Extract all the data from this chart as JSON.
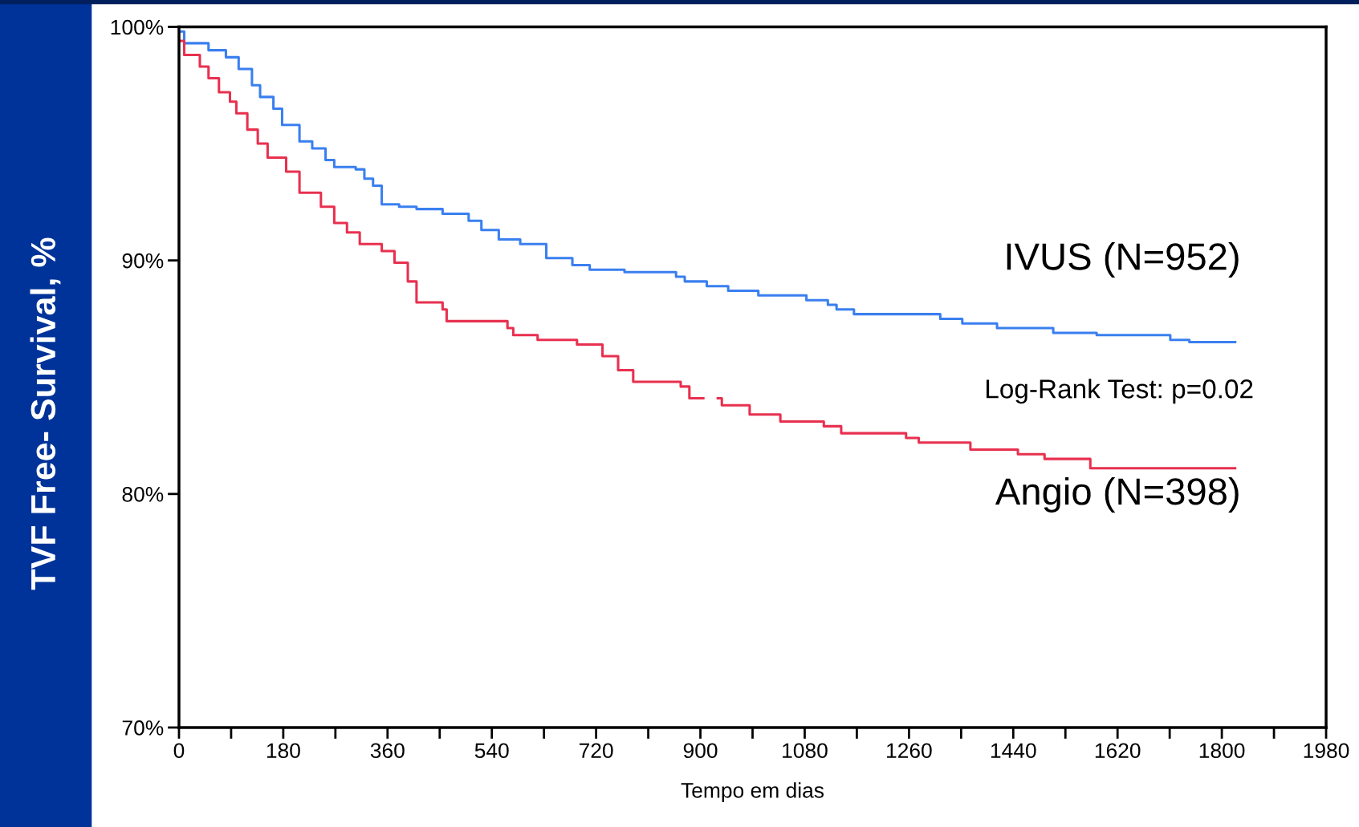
{
  "chart_data": {
    "type": "step",
    "xlabel": "Tempo em dias",
    "ylabel": "TVF Free- Survival, %",
    "annotations": [
      "Log-Rank Test: p=0.02"
    ],
    "xlim": [
      0,
      1980
    ],
    "ylim": [
      70,
      100
    ],
    "xticks": [
      0,
      {
        "value": 90,
        "label": null
      },
      180,
      {
        "value": 270,
        "label": null
      },
      360,
      {
        "value": 450,
        "label": null
      },
      540,
      {
        "value": 630,
        "label": null
      },
      720,
      {
        "value": 810,
        "label": null
      },
      900,
      {
        "value": 990,
        "label": null
      },
      1080,
      {
        "value": 1170,
        "label": null
      },
      1260,
      {
        "value": 1350,
        "label": null
      },
      1440,
      {
        "value": 1530,
        "label": null
      },
      1620,
      {
        "value": 1710,
        "label": null
      },
      1800,
      {
        "value": 1890,
        "label": null
      },
      1980
    ],
    "yticks": [
      {
        "value": 70,
        "label": "70%"
      },
      {
        "value": 80,
        "label": "80%"
      },
      {
        "value": 90,
        "label": "90%"
      },
      {
        "value": 100,
        "label": "100%"
      }
    ],
    "grid": false,
    "legend": false,
    "series": [
      {
        "name": "IVUS (N=952)",
        "color": "#3a7ff0",
        "x": [
          0,
          9,
          51,
          81,
          103,
          126,
          140,
          163,
          178,
          208,
          230,
          253,
          268,
          305,
          320,
          335,
          350,
          380,
          410,
          455,
          500,
          522,
          552,
          589,
          634,
          679,
          709,
          769,
          858,
          873,
          911,
          948,
          1000,
          1083,
          1120,
          1135,
          1165,
          1314,
          1352,
          1412,
          1509,
          1584,
          1711,
          1744,
          1823
        ],
        "values": [
          99.8,
          99.3,
          99.0,
          98.7,
          98.2,
          97.5,
          97.0,
          96.5,
          95.8,
          95.1,
          94.8,
          94.3,
          94.0,
          93.9,
          93.5,
          93.2,
          92.4,
          92.3,
          92.2,
          92.0,
          91.7,
          91.3,
          90.9,
          90.7,
          90.1,
          89.8,
          89.6,
          89.5,
          89.3,
          89.1,
          88.9,
          88.7,
          88.5,
          88.3,
          88.1,
          87.9,
          87.7,
          87.5,
          87.3,
          87.1,
          86.9,
          86.8,
          86.6,
          86.5,
          86.5
        ]
      },
      {
        "name": "Angio (N=398)",
        "color": "#e8304f",
        "x": [
          0,
          9,
          36,
          51,
          69,
          88,
          99,
          118,
          136,
          153,
          185,
          208,
          245,
          268,
          290,
          312,
          350,
          372,
          395,
          410,
          455,
          462,
          567,
          577,
          619,
          687,
          731,
          758,
          784,
          866,
          881,
          905,
          930,
          937,
          985,
          1038,
          1113,
          1143,
          1255,
          1277,
          1366,
          1448,
          1494,
          1573,
          1823
        ],
        "values": [
          99.4,
          98.8,
          98.3,
          97.8,
          97.2,
          96.8,
          96.3,
          95.6,
          95.0,
          94.4,
          93.8,
          92.9,
          92.3,
          91.6,
          91.2,
          90.7,
          90.4,
          89.9,
          89.1,
          88.2,
          87.9,
          87.4,
          87.1,
          86.8,
          86.6,
          86.4,
          85.9,
          85.3,
          84.8,
          84.6,
          84.1,
          null,
          84.1,
          83.8,
          83.4,
          83.1,
          82.9,
          82.6,
          82.4,
          82.2,
          81.9,
          81.7,
          81.5,
          81.1,
          81.1
        ]
      }
    ]
  }
}
